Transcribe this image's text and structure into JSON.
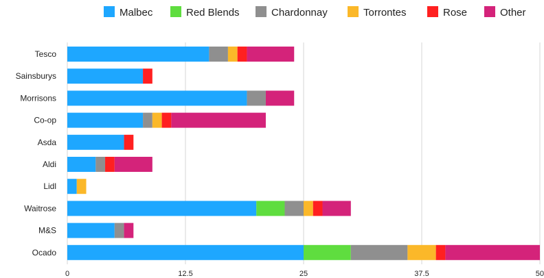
{
  "chart_data": {
    "type": "bar",
    "orientation": "horizontal",
    "stacked": true,
    "categories": [
      "Tesco",
      "Sainsburys",
      "Morrisons",
      "Co-op",
      "Asda",
      "Aldi",
      "Lidl",
      "Waitrose",
      "M&S",
      "Ocado"
    ],
    "series": [
      {
        "name": "Malbec",
        "color": "#1ea7ff",
        "values": [
          15,
          8,
          19,
          8,
          6,
          3,
          1,
          20,
          5,
          25
        ]
      },
      {
        "name": "Red Blends",
        "color": "#5fdd3f",
        "values": [
          0,
          0,
          0,
          0,
          0,
          0,
          0,
          3,
          0,
          5
        ]
      },
      {
        "name": "Chardonnay",
        "color": "#8f8f8f",
        "values": [
          2,
          0,
          2,
          1,
          0,
          1,
          0,
          2,
          1,
          6
        ]
      },
      {
        "name": "Torrontes",
        "color": "#fbb829",
        "values": [
          1,
          0,
          0,
          1,
          0,
          0,
          1,
          1,
          0,
          3
        ]
      },
      {
        "name": "Rose",
        "color": "#ff2020",
        "values": [
          1,
          1,
          0,
          1,
          1,
          1,
          0,
          1,
          0,
          1
        ]
      },
      {
        "name": "Other",
        "color": "#d4237a",
        "values": [
          5,
          0,
          3,
          10,
          0,
          4,
          0,
          3,
          1,
          10
        ]
      }
    ],
    "xticks": [
      "0",
      "12.5",
      "25",
      "37.5",
      "50"
    ],
    "xlim": [
      0,
      50
    ],
    "legend_position": "top",
    "grid": "vertical"
  }
}
